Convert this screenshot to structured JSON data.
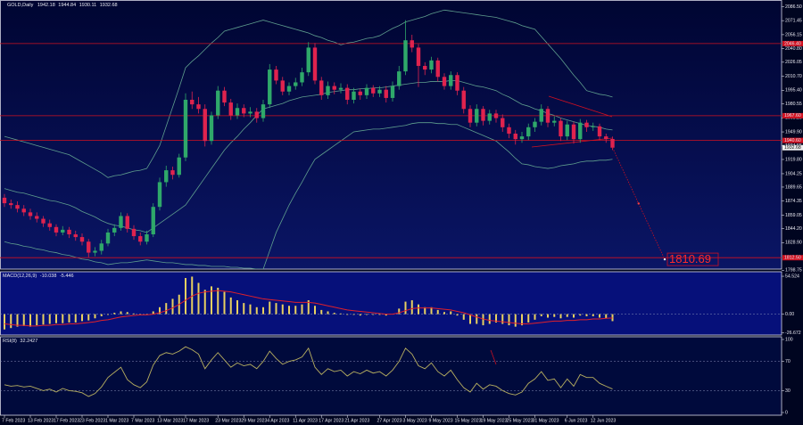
{
  "chart_data": {
    "type": "candlestick",
    "symbol": "GOLD,Daily",
    "ylim": [
      1802,
      2094
    ],
    "yticks": [
      {
        "value": 2086.5,
        "label": "2086.50"
      },
      {
        "value": 2071.45,
        "label": "2071.45"
      },
      {
        "value": 2056.15,
        "label": "2056.15"
      },
      {
        "value": 2040.8,
        "label": "2040.80"
      },
      {
        "value": 2026.05,
        "label": "2026.05"
      },
      {
        "value": 2010.7,
        "label": "2010.70"
      },
      {
        "value": 1995.4,
        "label": "1995.40"
      },
      {
        "value": 1980.55,
        "label": "1980.55"
      },
      {
        "value": 1965.2,
        "label": "1965.20"
      },
      {
        "value": 1949.9,
        "label": "1949.90"
      },
      {
        "value": 1934.55,
        "label": "1934.55"
      },
      {
        "value": 1919.8,
        "label": "1919.80"
      },
      {
        "value": 1904.25,
        "label": "1904.25"
      },
      {
        "value": 1889.65,
        "label": "1889.65"
      },
      {
        "value": 1874.35,
        "label": "1874.35"
      },
      {
        "value": 1859.05,
        "label": "1859.05"
      },
      {
        "value": 1844.2,
        "label": "1844.20"
      },
      {
        "value": 1828.9,
        "label": "1828.90"
      },
      {
        "value": 1798.75,
        "label": "1798.75"
      }
    ],
    "categories": [
      "7 Feb 2023",
      null,
      null,
      null,
      "13 Feb 2023",
      null,
      null,
      null,
      "17 Feb 2023",
      null,
      null,
      null,
      "23 Feb 2023",
      null,
      null,
      null,
      "1 Mar 2023",
      null,
      null,
      null,
      "7 Mar 2023",
      null,
      null,
      null,
      "13 Mar 2023",
      null,
      null,
      null,
      "17 Mar 2023",
      null,
      null,
      null,
      null,
      "23 Mar 2023",
      null,
      null,
      null,
      "29 Mar 2023",
      null,
      null,
      null,
      "4 Apr 2023",
      null,
      null,
      null,
      "11 Apr 2023",
      null,
      null,
      null,
      "17 Apr 2023",
      null,
      null,
      null,
      "21 Apr 2023",
      null,
      null,
      null,
      null,
      "27 Apr 2023",
      null,
      null,
      null,
      "3 May 2023",
      null,
      null,
      null,
      "9 May 2023",
      null,
      null,
      null,
      "15 May 2023",
      null,
      null,
      null,
      "19 May 2023",
      null,
      null,
      null,
      "25 May 2023",
      null,
      null,
      null,
      "31 May 2023",
      null,
      null,
      null,
      null,
      "6 Jun 2023",
      null,
      null,
      null,
      "12 Jun 2023",
      null,
      null,
      null
    ],
    "up_color": "#2fa86a",
    "down_color": "#e0234e",
    "candles": [
      [
        1878,
        1882,
        1868,
        1872
      ],
      [
        1872,
        1876,
        1866,
        1870
      ],
      [
        1870,
        1874,
        1862,
        1866
      ],
      [
        1866,
        1870,
        1858,
        1862
      ],
      [
        1862,
        1866,
        1854,
        1858
      ],
      [
        1858,
        1862,
        1851,
        1855
      ],
      [
        1855,
        1858,
        1846,
        1850
      ],
      [
        1850,
        1854,
        1842,
        1846
      ],
      [
        1846,
        1849,
        1836,
        1840
      ],
      [
        1840,
        1847,
        1837,
        1843
      ],
      [
        1843,
        1846,
        1834,
        1838
      ],
      [
        1838,
        1842,
        1831,
        1835
      ],
      [
        1835,
        1839,
        1826,
        1830
      ],
      [
        1830,
        1833,
        1813,
        1818
      ],
      [
        1818,
        1824,
        1814,
        1820
      ],
      [
        1820,
        1832,
        1816,
        1828
      ],
      [
        1828,
        1844,
        1825,
        1840
      ],
      [
        1840,
        1849,
        1836,
        1845
      ],
      [
        1845,
        1862,
        1842,
        1858
      ],
      [
        1858,
        1861,
        1840,
        1844
      ],
      [
        1844,
        1848,
        1832,
        1836
      ],
      [
        1836,
        1840,
        1826,
        1830
      ],
      [
        1830,
        1842,
        1827,
        1838
      ],
      [
        1838,
        1872,
        1835,
        1868
      ],
      [
        1868,
        1900,
        1864,
        1895
      ],
      [
        1895,
        1913,
        1890,
        1908
      ],
      [
        1908,
        1912,
        1898,
        1903
      ],
      [
        1903,
        1926,
        1900,
        1922
      ],
      [
        1922,
        1992,
        1918,
        1985
      ],
      [
        1985,
        1994,
        1975,
        1980
      ],
      [
        1980,
        1988,
        1970,
        1975
      ],
      [
        1975,
        1980,
        1934,
        1940
      ],
      [
        1940,
        1972,
        1936,
        1968
      ],
      [
        1968,
        2000,
        1964,
        1995
      ],
      [
        1995,
        1999,
        1978,
        1982
      ],
      [
        1982,
        1986,
        1963,
        1968
      ],
      [
        1968,
        1981,
        1964,
        1976
      ],
      [
        1976,
        1980,
        1966,
        1970
      ],
      [
        1970,
        1977,
        1966,
        1972
      ],
      [
        1972,
        1976,
        1960,
        1965
      ],
      [
        1965,
        1985,
        1961,
        1980
      ],
      [
        1980,
        2024,
        1976,
        2018
      ],
      [
        2018,
        2022,
        2002,
        2006
      ],
      [
        2006,
        2010,
        1990,
        1994
      ],
      [
        1994,
        2004,
        1990,
        2000
      ],
      [
        2000,
        2009,
        1996,
        2004
      ],
      [
        2004,
        2020,
        2000,
        2015
      ],
      [
        2015,
        2048,
        2011,
        2042
      ],
      [
        2042,
        2047,
        2002,
        2006
      ],
      [
        2006,
        2010,
        1985,
        1990
      ],
      [
        1990,
        2005,
        1986,
        2000
      ],
      [
        2000,
        2004,
        1991,
        1996
      ],
      [
        1996,
        2003,
        1992,
        1998
      ],
      [
        1998,
        2002,
        1980,
        1985
      ],
      [
        1985,
        1998,
        1981,
        1994
      ],
      [
        1994,
        1997,
        1985,
        1990
      ],
      [
        1990,
        2002,
        1986,
        1998
      ],
      [
        1998,
        2001,
        1988,
        1992
      ],
      [
        1992,
        2000,
        1988,
        1996
      ],
      [
        1996,
        2000,
        1982,
        1987
      ],
      [
        1987,
        2005,
        1983,
        2000
      ],
      [
        2000,
        2022,
        1996,
        2016
      ],
      [
        2016,
        2072,
        2012,
        2050
      ],
      [
        2050,
        2056,
        2037,
        2042
      ],
      [
        2042,
        2046,
        1999,
        2022
      ],
      [
        2022,
        2026,
        2012,
        2018
      ],
      [
        2018,
        2032,
        2014,
        2028
      ],
      [
        2028,
        2031,
        2005,
        2010
      ],
      [
        2010,
        2014,
        1996,
        2000
      ],
      [
        2000,
        2016,
        1996,
        2012
      ],
      [
        2012,
        2015,
        1990,
        1995
      ],
      [
        1995,
        1999,
        1970,
        1975
      ],
      [
        1975,
        1979,
        1955,
        1960
      ],
      [
        1960,
        1980,
        1956,
        1975
      ],
      [
        1975,
        1978,
        1957,
        1962
      ],
      [
        1962,
        1974,
        1958,
        1970
      ],
      [
        1970,
        1974,
        1960,
        1965
      ],
      [
        1965,
        1969,
        1950,
        1955
      ],
      [
        1955,
        1959,
        1943,
        1948
      ],
      [
        1948,
        1952,
        1936,
        1942
      ],
      [
        1942,
        1950,
        1938,
        1945
      ],
      [
        1945,
        1959,
        1941,
        1955
      ],
      [
        1955,
        1965,
        1950,
        1961
      ],
      [
        1961,
        1980,
        1957,
        1975
      ],
      [
        1975,
        1978,
        1955,
        1960
      ],
      [
        1960,
        1967,
        1956,
        1962
      ],
      [
        1962,
        1965,
        1940,
        1945
      ],
      [
        1945,
        1962,
        1941,
        1958
      ],
      [
        1958,
        1961,
        1937,
        1942
      ],
      [
        1942,
        1964,
        1938,
        1960
      ],
      [
        1960,
        1963,
        1950,
        1955
      ],
      [
        1955,
        1960,
        1951,
        1956
      ],
      [
        1956,
        1959,
        1941,
        1945
      ],
      [
        1945,
        1948,
        1938,
        1942
      ],
      [
        1942.18,
        1944.84,
        1930.11,
        1932.68
      ]
    ],
    "bollinger": {
      "color": "#5f9e8e",
      "upper": [
        1945,
        1943,
        1941,
        1939,
        1937,
        1935,
        1933,
        1931,
        1929,
        1927,
        1925,
        1921,
        1917,
        1913,
        1909,
        1905,
        1900,
        1902,
        1903,
        1905,
        1907,
        1908,
        1910,
        1922,
        1935,
        1956,
        1977,
        1998,
        2020,
        2027,
        2033,
        2040,
        2047,
        2053,
        2060,
        2062,
        2064,
        2066,
        2068,
        2070,
        2072,
        2070,
        2068,
        2066,
        2064,
        2062,
        2060,
        2058,
        2055,
        2053,
        2050,
        2048,
        2045,
        2047,
        2048,
        2050,
        2052,
        2053,
        2055,
        2059,
        2063,
        2066,
        2070,
        2072,
        2074,
        2076,
        2079,
        2081,
        2083,
        2082,
        2081,
        2080,
        2079,
        2078,
        2077,
        2076,
        2075,
        2073,
        2071,
        2069,
        2066,
        2064,
        2062,
        2054,
        2046,
        2038,
        2030,
        2021,
        2012,
        2004,
        1995,
        1993,
        1991,
        1990,
        1988
      ],
      "middle": [
        1888,
        1886,
        1884,
        1883,
        1881,
        1879,
        1877,
        1875,
        1874,
        1872,
        1870,
        1867,
        1863,
        1860,
        1857,
        1853,
        1850,
        1848,
        1847,
        1845,
        1843,
        1842,
        1840,
        1845,
        1850,
        1855,
        1860,
        1865,
        1870,
        1880,
        1890,
        1900,
        1910,
        1920,
        1930,
        1938,
        1945,
        1953,
        1960,
        1968,
        1975,
        1977,
        1979,
        1981,
        1984,
        1986,
        1988,
        1989,
        1990,
        1991,
        1993,
        1994,
        1995,
        1996,
        1996,
        1997,
        1997,
        1998,
        1998,
        1999,
        2000,
        2001,
        2002,
        2003,
        2004,
        2004,
        2005,
        2005,
        2005,
        2006,
        2006,
        2004,
        2002,
        2000,
        1999,
        1997,
        1995,
        1991,
        1988,
        1984,
        1980,
        1978,
        1975,
        1973,
        1970,
        1968,
        1965,
        1963,
        1961,
        1959,
        1957,
        1956,
        1955,
        1953,
        1952
      ],
      "lower": [
        1830,
        1828,
        1827,
        1825,
        1824,
        1822,
        1821,
        1819,
        1818,
        1816,
        1815,
        1813,
        1811,
        1810,
        1808,
        1807,
        1805,
        1806,
        1807,
        1807,
        1808,
        1809,
        1810,
        1809,
        1808,
        1807,
        1807,
        1806,
        1805,
        1805,
        1804,
        1804,
        1803,
        1803,
        1803,
        1802,
        1802,
        1801,
        1801,
        1800,
        1800,
        1820,
        1840,
        1855,
        1870,
        1883,
        1895,
        1908,
        1920,
        1925,
        1930,
        1935,
        1940,
        1945,
        1950,
        1951,
        1952,
        1953,
        1953,
        1954,
        1955,
        1956,
        1957,
        1959,
        1960,
        1960,
        1960,
        1959,
        1959,
        1958,
        1958,
        1955,
        1952,
        1949,
        1946,
        1943,
        1940,
        1934,
        1928,
        1921,
        1915,
        1914,
        1912,
        1911,
        1910,
        1911,
        1913,
        1914,
        1915,
        1917,
        1918,
        1918,
        1919,
        1919,
        1920
      ]
    },
    "levels_color": "#d01020",
    "levels": [
      {
        "value": 2046.4,
        "label": "2046.40"
      },
      {
        "value": 1967.6,
        "label": "1967.60"
      },
      {
        "value": 1940.6,
        "label": "1940.60"
      },
      {
        "value": 1812.5,
        "label": "1812.50"
      }
    ],
    "target": 1810.69,
    "macd": {
      "title": "MACD(12,26,9)",
      "ylim": [
        -30,
        61
      ],
      "yticks": [
        54.524,
        {
          "value": 0,
          "label": "0.00"
        },
        -26.672
      ],
      "hist_color": "#e8d060",
      "signal_color": "#e0202a",
      "hist": [
        -22,
        -20,
        -18,
        -17,
        -18,
        -16,
        -15,
        -14,
        -13,
        -13,
        -12,
        -12,
        -10,
        -9,
        -6,
        -3,
        -1,
        2,
        4,
        3,
        1,
        -1,
        0,
        4,
        10,
        16,
        22,
        28,
        52,
        54,
        45,
        35,
        40,
        38,
        32,
        24,
        20,
        16,
        14,
        10,
        10,
        18,
        16,
        14,
        12,
        12,
        14,
        20,
        12,
        6,
        4,
        2,
        1,
        -1,
        -1,
        -2,
        -1,
        -1,
        -1,
        -2,
        0,
        8,
        18,
        20,
        14,
        10,
        10,
        6,
        3,
        4,
        -2,
        -8,
        -14,
        -14,
        -16,
        -14,
        -12,
        -14,
        -16,
        -18,
        -16,
        -12,
        -8,
        -3,
        -5,
        -4,
        -6,
        -4,
        -5,
        -2,
        -3,
        -3,
        -5,
        -6,
        -10.038
      ],
      "signal": [
        -14,
        -15,
        -16,
        -16,
        -17,
        -17,
        -16,
        -16,
        -15,
        -15,
        -14,
        -14,
        -13,
        -12,
        -11,
        -9,
        -8,
        -6,
        -4,
        -3,
        -2,
        -1,
        -1,
        0,
        2,
        5,
        9,
        14,
        20,
        26,
        30,
        32,
        33,
        34,
        33,
        32,
        30,
        28,
        26,
        24,
        22,
        21,
        20,
        19,
        18,
        17,
        17,
        17,
        16,
        14,
        12,
        10,
        8,
        6,
        5,
        4,
        3,
        2,
        1,
        0,
        0,
        2,
        5,
        8,
        9,
        9,
        9,
        8,
        7,
        6,
        4,
        2,
        -1,
        -4,
        -7,
        -9,
        -10,
        -11,
        -12,
        -13,
        -14,
        -14,
        -13,
        -12,
        -11,
        -10,
        -10,
        -9,
        -9,
        -8,
        -8,
        -7,
        -7,
        -6,
        -5.446
      ]
    },
    "rsi": {
      "title": "RSI(8)",
      "ylim": [
        0,
        100
      ],
      "yticks": [
        100,
        70,
        30,
        0
      ],
      "color": "#b8b060",
      "values": [
        38,
        36,
        37,
        35,
        36,
        33,
        30,
        32,
        28,
        33,
        30,
        29,
        27,
        22,
        26,
        35,
        48,
        55,
        62,
        45,
        38,
        34,
        42,
        65,
        78,
        82,
        80,
        84,
        90,
        86,
        80,
        60,
        72,
        82,
        72,
        62,
        68,
        64,
        66,
        60,
        70,
        84,
        74,
        66,
        70,
        72,
        76,
        88,
        62,
        52,
        60,
        56,
        58,
        50,
        56,
        53,
        58,
        54,
        56,
        50,
        58,
        70,
        88,
        80,
        64,
        60,
        68,
        56,
        50,
        58,
        45,
        34,
        28,
        40,
        32,
        38,
        36,
        30,
        26,
        24,
        28,
        40,
        46,
        56,
        44,
        46,
        34,
        46,
        36,
        52,
        48,
        48,
        40,
        36,
        32.2427
      ]
    }
  }
}
